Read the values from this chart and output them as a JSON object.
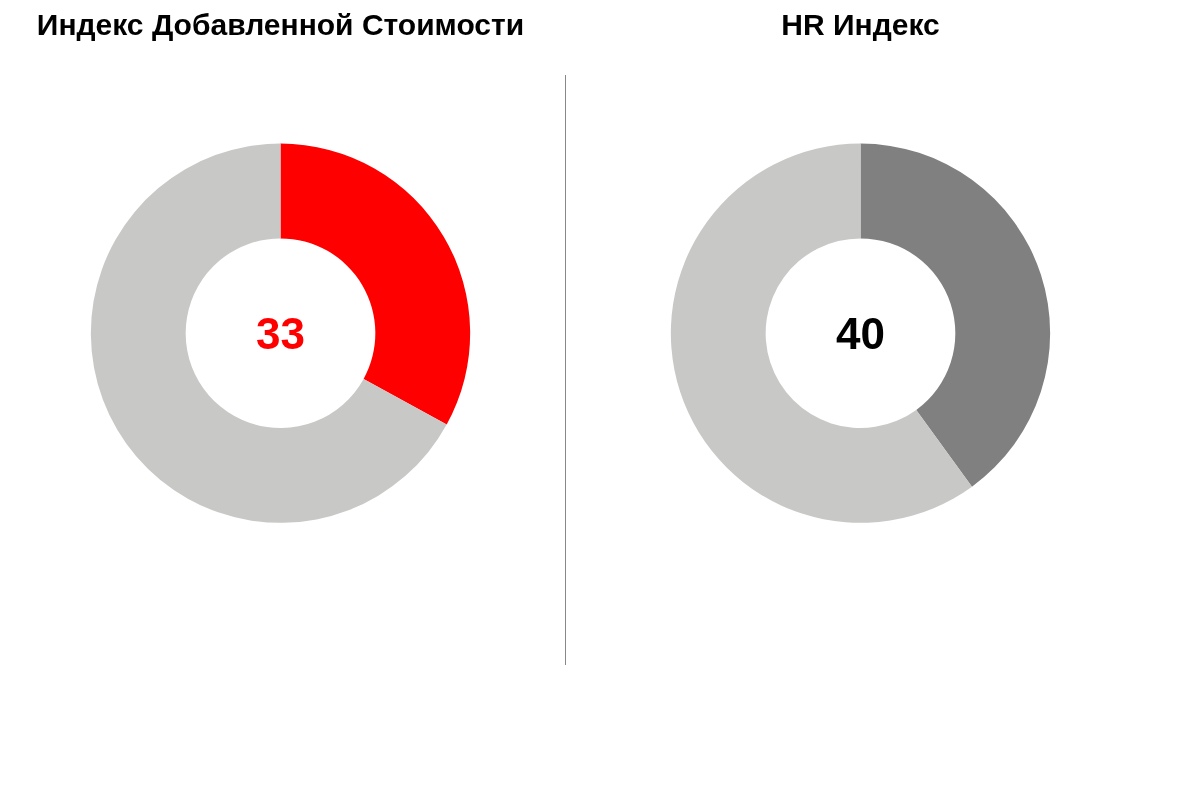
{
  "chart_data": [
    {
      "type": "donut",
      "title": "Индекс Добавленной Стоимости",
      "categories": [
        null,
        null
      ],
      "values": [
        33,
        67
      ],
      "colors": [
        "#ff0000",
        "#c8c8c6"
      ],
      "annotations": [
        "33"
      ]
    },
    {
      "type": "donut",
      "title": "HR Индекс",
      "categories": [
        null,
        null
      ],
      "values": [
        40,
        60
      ],
      "colors": [
        "#808080",
        "#c8c8c6"
      ],
      "annotations": [
        "40"
      ]
    }
  ]
}
